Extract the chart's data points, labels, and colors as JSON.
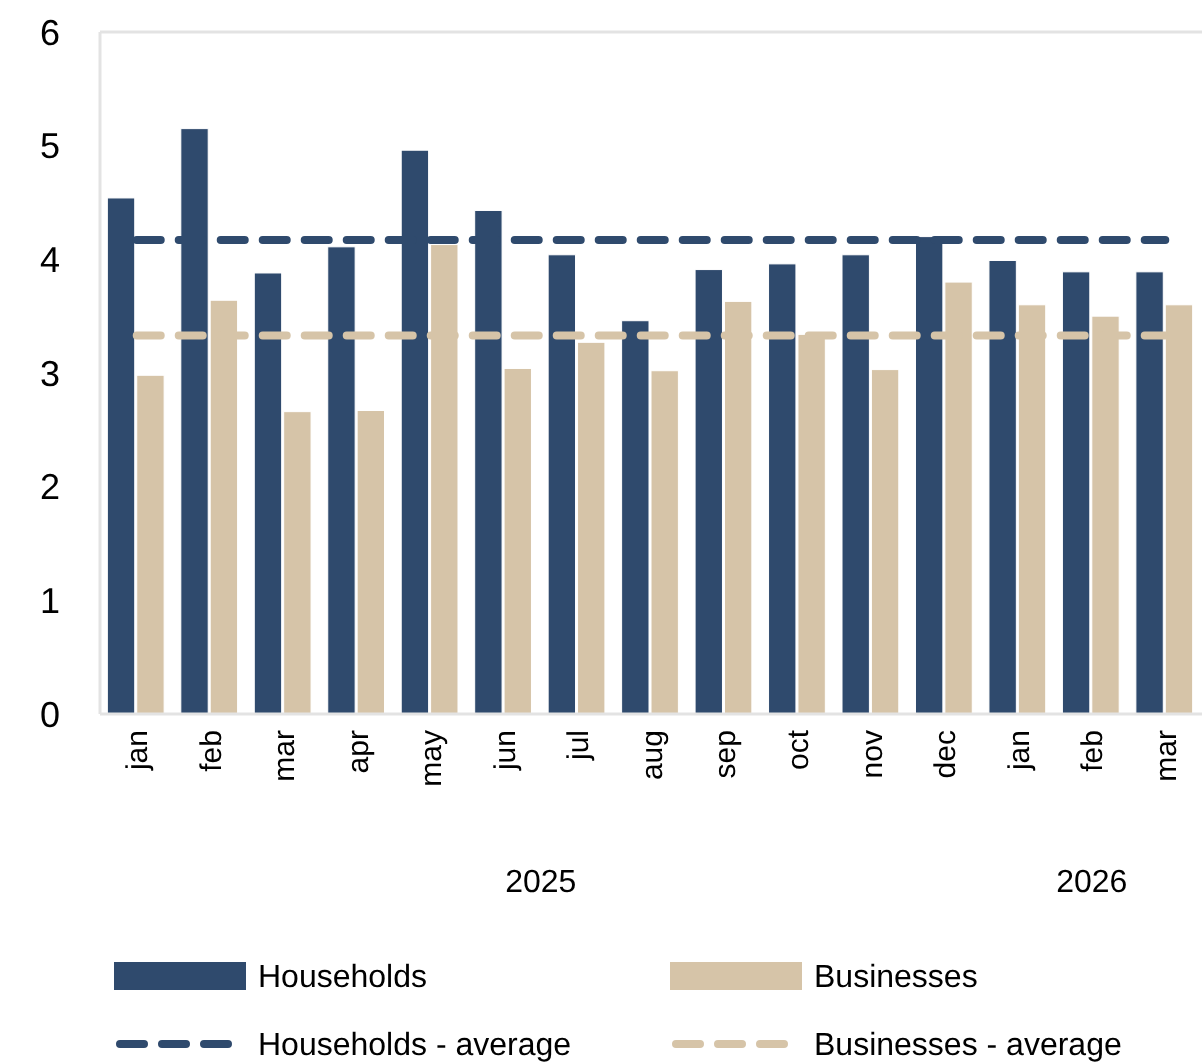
{
  "chart_data": {
    "type": "bar",
    "categories": [
      "jan",
      "feb",
      "mar",
      "apr",
      "may",
      "jun",
      "jul",
      "aug",
      "sep",
      "oct",
      "nov",
      "dec",
      "jan",
      "feb",
      "mar"
    ],
    "series": [
      {
        "name": "Households",
        "color": "#2f4a6d",
        "values": [
          4.54,
          5.15,
          3.88,
          4.11,
          4.96,
          4.43,
          4.04,
          3.46,
          3.91,
          3.96,
          4.04,
          4.2,
          3.99,
          3.89,
          3.89
        ]
      },
      {
        "name": "Businesses",
        "color": "#d6c4a8",
        "values": [
          2.98,
          3.64,
          2.66,
          2.67,
          4.13,
          3.04,
          3.27,
          3.02,
          3.63,
          3.34,
          3.03,
          3.8,
          3.6,
          3.5,
          3.6
        ]
      }
    ],
    "ref_lines": [
      {
        "axis": "y",
        "value": 4.17,
        "label": "Households - average",
        "color": "#2f4a6d",
        "line_style": "dashed"
      },
      {
        "axis": "y",
        "value": 3.33,
        "label": "Businesses - average",
        "color": "#d6c4a8",
        "line_style": "dashed"
      }
    ],
    "annotations": [
      "2025",
      "2026"
    ],
    "ylim": [
      0,
      6
    ],
    "yticks": [
      0,
      1,
      2,
      3,
      4,
      5,
      6
    ],
    "grid": false,
    "legend": "bottom"
  }
}
